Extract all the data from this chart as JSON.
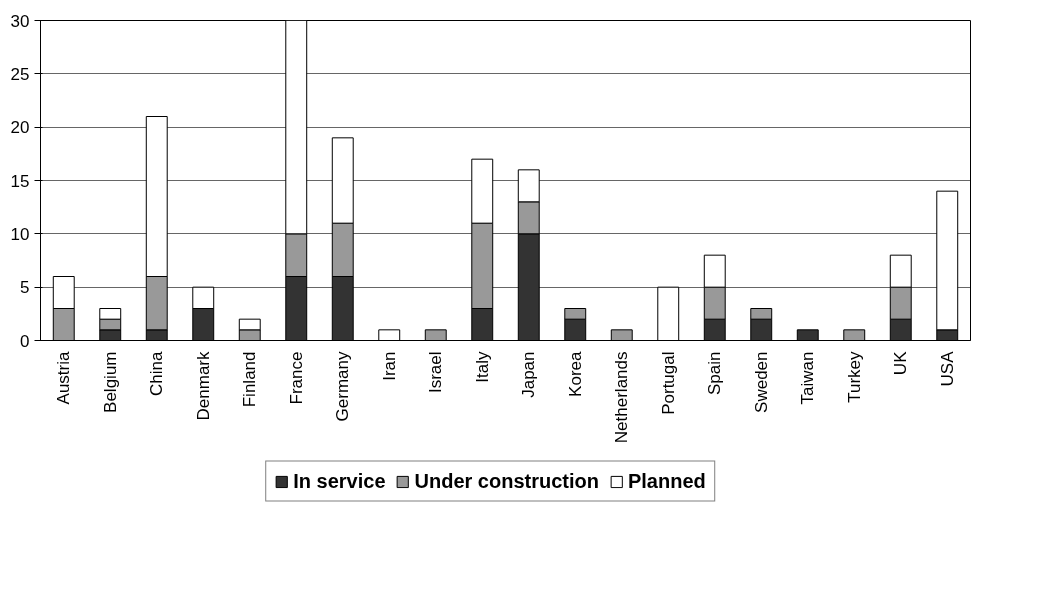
{
  "chart_data": {
    "type": "bar",
    "stacked": true,
    "categories": [
      "Austria",
      "Belgium",
      "China",
      "Denmark",
      "Finland",
      "France",
      "Germany",
      "Iran",
      "Israel",
      "Italy",
      "Japan",
      "Korea",
      "Netherlands",
      "Portugal",
      "Spain",
      "Sweden",
      "Taiwan",
      "Turkey",
      "UK",
      "USA"
    ],
    "series": [
      {
        "name": "In service",
        "color": "#333333",
        "values": [
          0,
          1,
          1,
          3,
          0,
          6,
          6,
          0,
          0,
          3,
          10,
          2,
          0,
          0,
          2,
          2,
          1,
          0,
          2,
          1
        ]
      },
      {
        "name": "Under construction",
        "color": "#999999",
        "values": [
          3,
          1,
          5,
          0,
          1,
          4,
          5,
          0,
          1,
          8,
          3,
          1,
          1,
          0,
          3,
          1,
          0,
          1,
          3,
          0
        ]
      },
      {
        "name": "Planned",
        "color": "#ffffff",
        "values": [
          3,
          1,
          15,
          2,
          1,
          20,
          8,
          1,
          0,
          6,
          3,
          0,
          0,
          5,
          3,
          0,
          0,
          0,
          3,
          13
        ]
      }
    ],
    "ylim": [
      0,
      30
    ],
    "yticks": [
      0,
      5,
      10,
      15,
      20,
      25,
      30
    ],
    "grid": "y",
    "legend": "bottom"
  }
}
